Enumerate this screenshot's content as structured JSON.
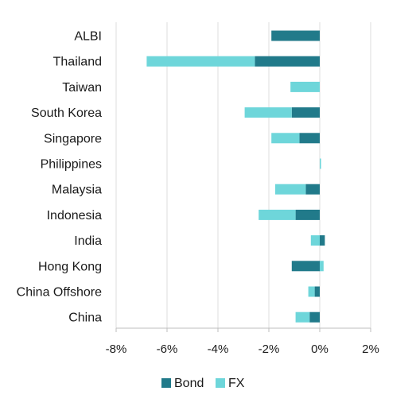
{
  "chart_data": {
    "type": "bar",
    "orientation": "horizontal",
    "stacked": true,
    "categories": [
      "ALBI",
      "Thailand",
      "Taiwan",
      "South Korea",
      "Singapore",
      "Philippines",
      "Malaysia",
      "Indonesia",
      "India",
      "Hong Kong",
      "China Offshore",
      "China"
    ],
    "series": [
      {
        "name": "Bond",
        "color": "#217a8a",
        "values": [
          -1.9,
          -2.55,
          0.0,
          -1.1,
          -0.8,
          0.0,
          -0.55,
          -0.95,
          0.2,
          -1.1,
          -0.2,
          -0.4
        ]
      },
      {
        "name": "FX",
        "color": "#6ed6da",
        "values": [
          0.0,
          -4.25,
          -1.15,
          -1.85,
          -1.1,
          0.05,
          -1.2,
          -1.45,
          -0.35,
          0.15,
          -0.25,
          -0.55
        ]
      }
    ],
    "xlim": [
      -8,
      2
    ],
    "xticks": [
      -8,
      -6,
      -4,
      -2,
      0,
      2
    ],
    "xtick_labels": [
      "-8%",
      "-6%",
      "-4%",
      "-2%",
      "0%",
      "2%"
    ],
    "grid": true,
    "legend_position": "bottom"
  }
}
